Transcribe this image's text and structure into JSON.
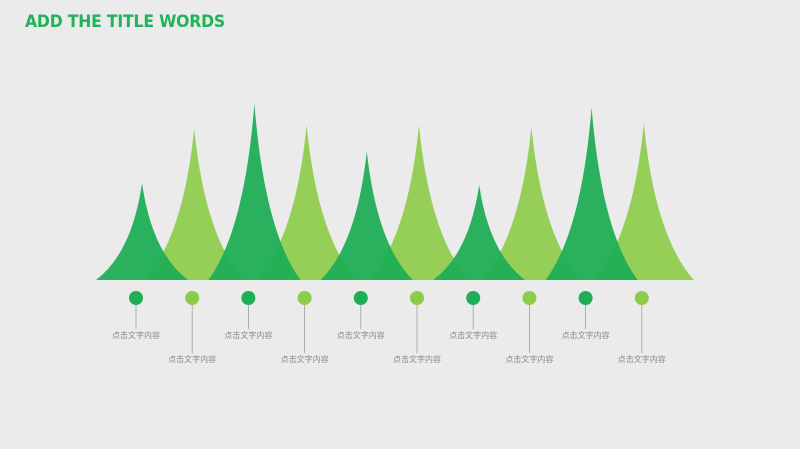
{
  "title": "ADD THE TITLE WORDS",
  "colors": {
    "dark": "#1fae56",
    "light": "#8dcc4b",
    "connector": "#9e9e9e",
    "label": "#8a8a8a"
  },
  "peaks": [
    {
      "label": "点击文字内容",
      "tone": "dark",
      "height_ratio": 0.55
    },
    {
      "label": "点击文字内容",
      "tone": "light",
      "height_ratio": 0.86
    },
    {
      "label": "点击文字内容",
      "tone": "dark",
      "height_ratio": 1.0
    },
    {
      "label": "点击文字内容",
      "tone": "light",
      "height_ratio": 0.88
    },
    {
      "label": "点击文字内容",
      "tone": "dark",
      "height_ratio": 0.73
    },
    {
      "label": "点击文字内容",
      "tone": "light",
      "height_ratio": 0.88
    },
    {
      "label": "点击文字内容",
      "tone": "dark",
      "height_ratio": 0.54
    },
    {
      "label": "点击文字内容",
      "tone": "light",
      "height_ratio": 0.87
    },
    {
      "label": "点击文字内容",
      "tone": "dark",
      "height_ratio": 0.98
    },
    {
      "label": "点击文字内容",
      "tone": "light",
      "height_ratio": 0.89
    }
  ]
}
